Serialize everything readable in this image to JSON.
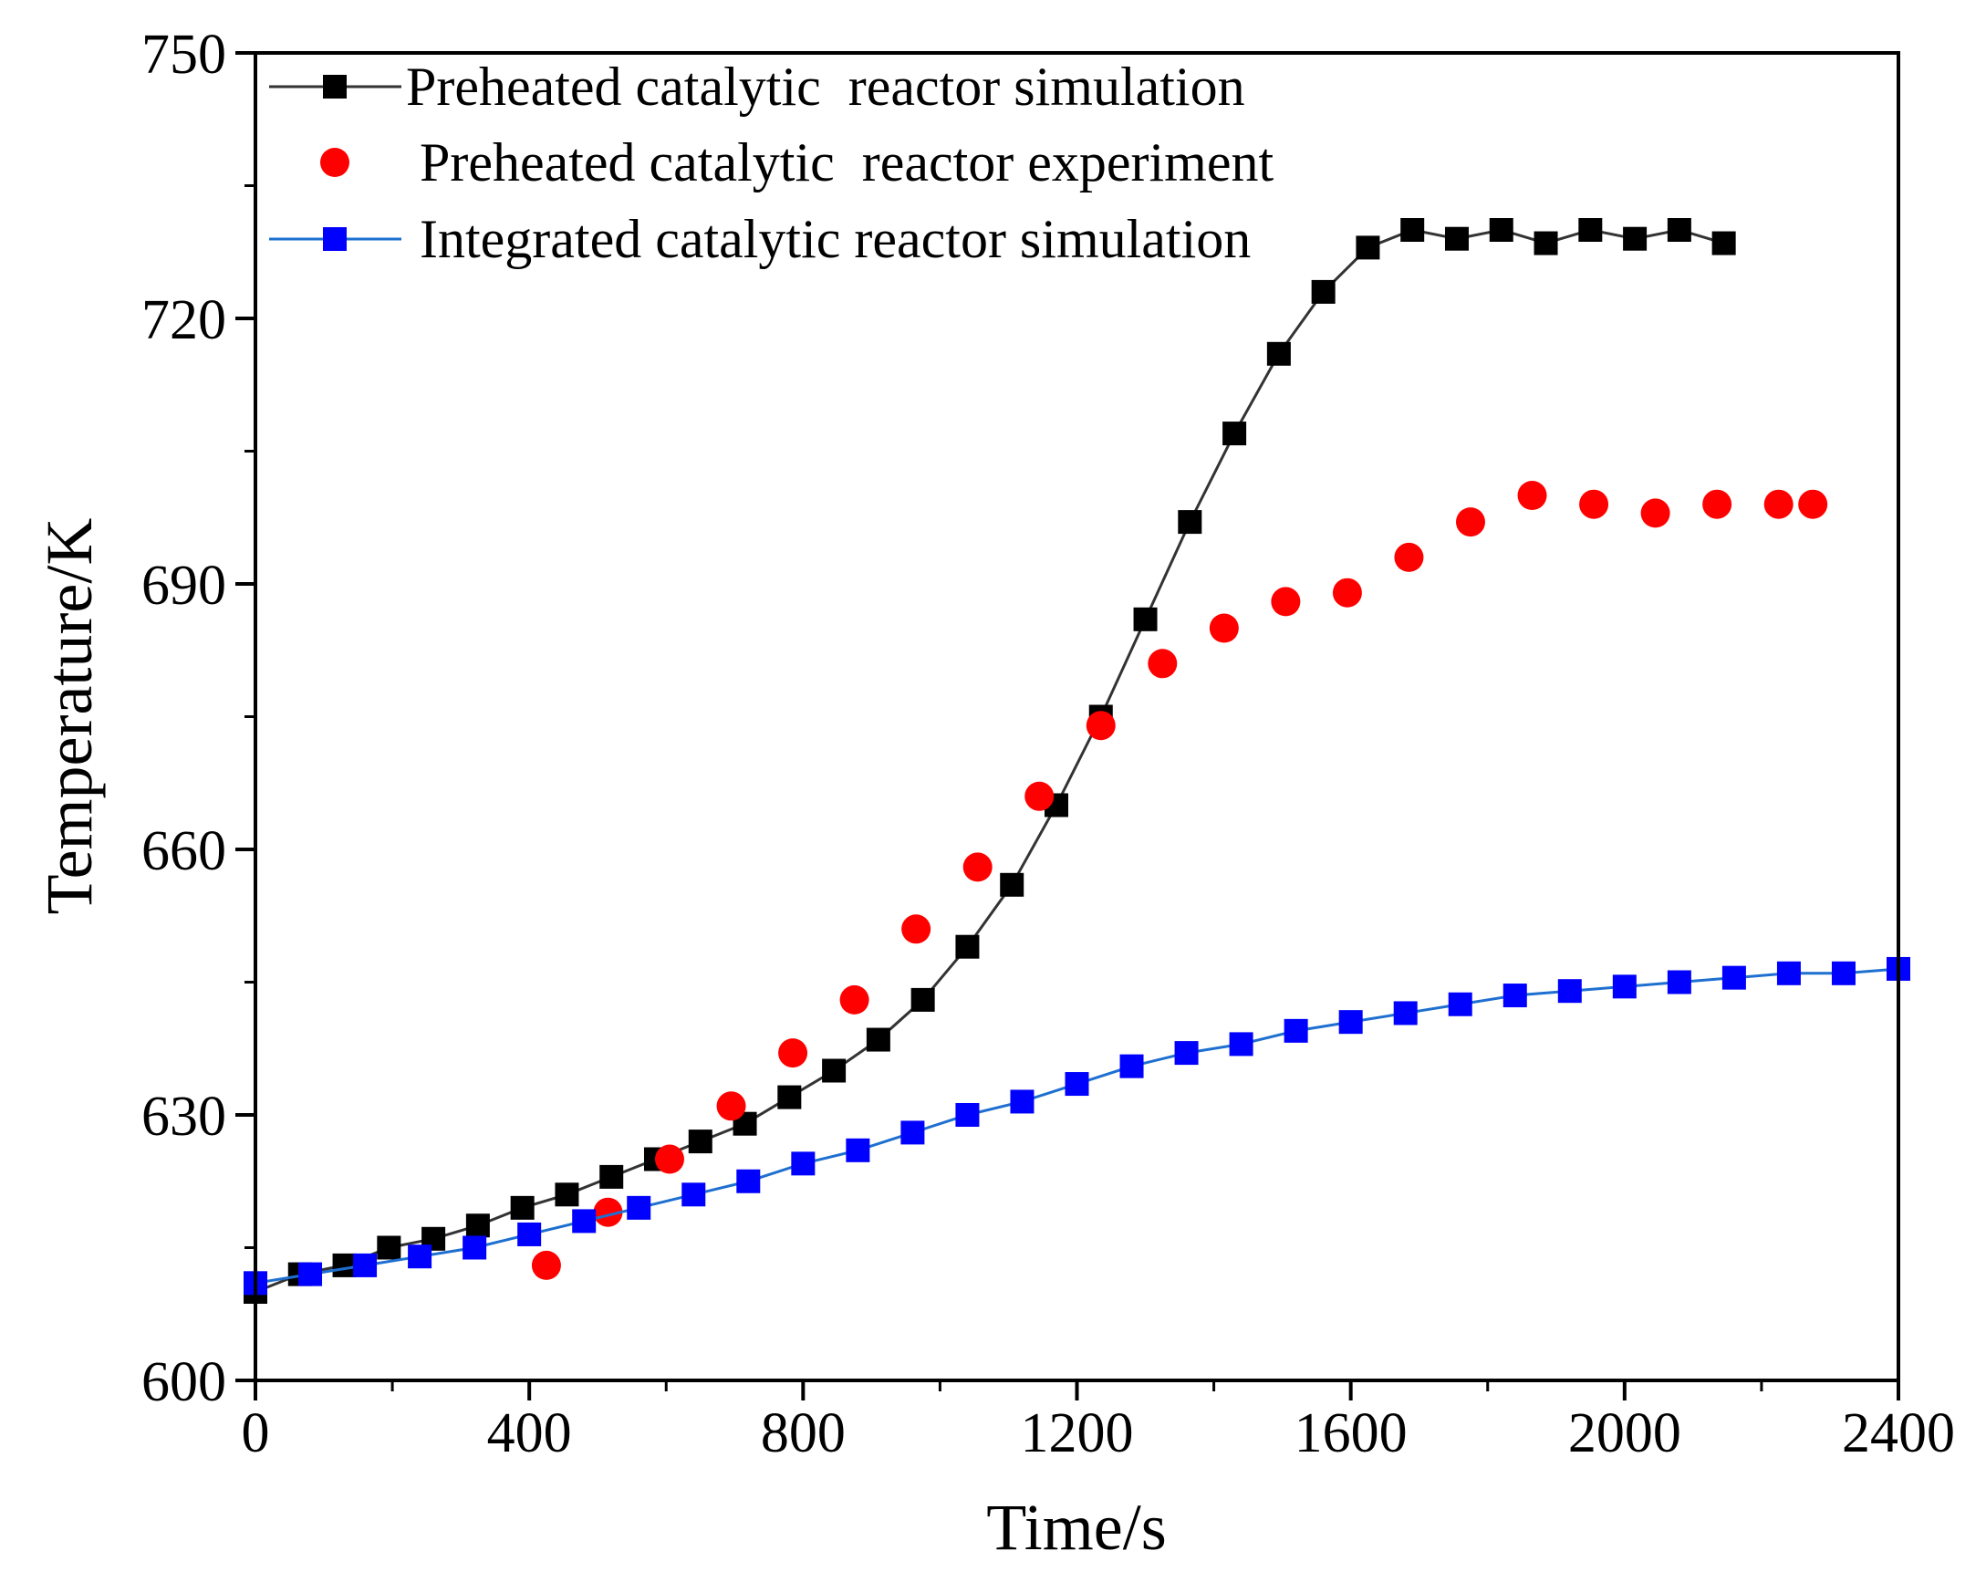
{
  "chart_data": {
    "type": "line",
    "xlabel": "Time/s",
    "ylabel": "Temperature/K",
    "xlim": [
      0,
      2400
    ],
    "ylim": [
      600,
      750
    ],
    "xticks": [
      0,
      400,
      800,
      1200,
      1600,
      2000,
      2400
    ],
    "yticks": [
      600,
      630,
      660,
      690,
      720,
      750
    ],
    "xtick_labels": [
      "0",
      "400",
      "800",
      "1200",
      "1600",
      "2000",
      "2400"
    ],
    "ytick_labels": [
      "600",
      "630",
      "660",
      "690",
      "720",
      "750"
    ],
    "grid": false,
    "legend_position": "top-left",
    "series": [
      {
        "name": "Preheated catalytic  reactor simulation",
        "marker": "square",
        "line": true,
        "color": "#000000",
        "line_color": "#333333",
        "x": [
          0,
          65,
          130,
          195,
          260,
          325,
          390,
          455,
          520,
          585,
          650,
          715,
          780,
          845,
          910,
          975,
          1040,
          1105,
          1170,
          1235,
          1300,
          1365,
          1430,
          1495,
          1560,
          1625,
          1690,
          1755,
          1820,
          1885,
          1950,
          2015,
          2080,
          2145
        ],
        "y": [
          610,
          612,
          613,
          615,
          616,
          617.5,
          619.5,
          621,
          623,
          625,
          627,
          629,
          632,
          635,
          638.5,
          643,
          649,
          656,
          665,
          675,
          686,
          697,
          707,
          716,
          723,
          728,
          730,
          729,
          730,
          728.5,
          730,
          729,
          730,
          728.5
        ]
      },
      {
        "name": "Preheated catalytic  reactor experiment",
        "marker": "circle",
        "line": false,
        "color": "#ff0000",
        "x": [
          425,
          515,
          605,
          695,
          785,
          875,
          965,
          1055,
          1145,
          1235,
          1325,
          1415,
          1505,
          1595,
          1685,
          1775,
          1865,
          1955,
          2045,
          2135,
          2225,
          2275
        ],
        "y": [
          613,
          619,
          625,
          631,
          637,
          643,
          651,
          658,
          666,
          674,
          681,
          685,
          688,
          689,
          693,
          697,
          700,
          699,
          698,
          699,
          699,
          699
        ]
      },
      {
        "name": "Integrated catalytic reactor simulation",
        "marker": "square",
        "line": true,
        "color": "#0000ff",
        "line_color": "#1e6fd0",
        "x": [
          0,
          80,
          160,
          240,
          320,
          400,
          480,
          560,
          640,
          720,
          800,
          880,
          960,
          1040,
          1120,
          1200,
          1280,
          1360,
          1440,
          1520,
          1600,
          1680,
          1760,
          1840,
          1920,
          2000,
          2080,
          2160,
          2240,
          2320,
          2400
        ],
        "y": [
          611,
          612,
          613,
          614,
          615,
          616.5,
          618,
          619.5,
          621,
          622.5,
          624.5,
          626,
          628,
          630,
          631.5,
          633.5,
          635.5,
          637,
          638,
          639.5,
          640.5,
          641.5,
          642.5,
          643.5,
          644,
          644.5,
          645,
          645.5,
          646,
          646,
          646.5
        ]
      }
    ]
  }
}
